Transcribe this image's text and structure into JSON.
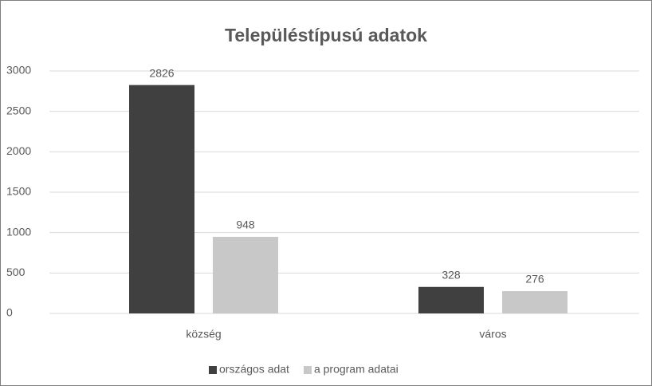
{
  "chart_data": {
    "type": "bar",
    "title": "Településtípusú adatok",
    "categories": [
      "község",
      "város"
    ],
    "series": [
      {
        "name": "országos adat",
        "color": "#404040",
        "values": [
          2826,
          328
        ]
      },
      {
        "name": "a program adatai",
        "color": "#c8c8c8",
        "values": [
          948,
          276
        ]
      }
    ],
    "ylim": [
      0,
      3000
    ],
    "yticks": [
      0,
      500,
      1000,
      1500,
      2000,
      2500,
      3000
    ],
    "grid": true,
    "legend": "bottom"
  }
}
